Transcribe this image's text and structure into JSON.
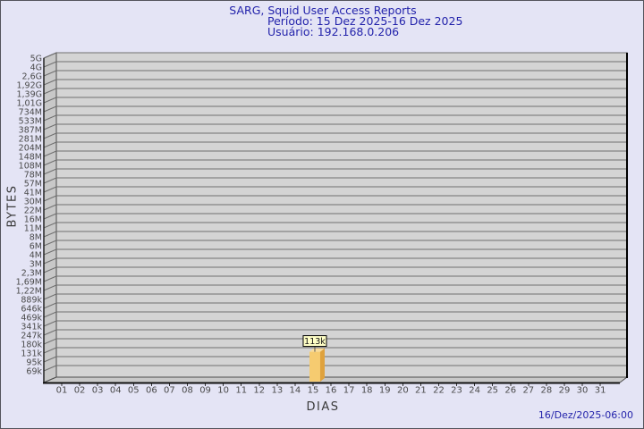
{
  "header": {
    "title": "SARG, Squid User Access Reports",
    "period": "Período: 15 Dez 2025-16 Dez 2025",
    "user": "Usuário: 192.168.0.206"
  },
  "footer": {
    "timestamp": "16/Dez/2025-06:00"
  },
  "chart_data": {
    "type": "bar",
    "title": "SARG, Squid User Access Reports",
    "subtitle": "Período: 15 Dez 2025-16 Dez 2025",
    "user_line": "Usuário: 192.168.0.206",
    "xlabel": "DIAS",
    "ylabel": "BYTES",
    "scale": "log",
    "y_min_value": 69000,
    "y_max_value": 5000000000,
    "y_ticks": [
      "5G",
      "4G",
      "2,6G",
      "1,92G",
      "1,39G",
      "1,01G",
      "734M",
      "533M",
      "387M",
      "281M",
      "204M",
      "148M",
      "108M",
      "78M",
      "57M",
      "41M",
      "30M",
      "22M",
      "16M",
      "11M",
      "8M",
      "6M",
      "4M",
      "3M",
      "2,3M",
      "1,69M",
      "1,22M",
      "889k",
      "646k",
      "469k",
      "341k",
      "247k",
      "180k",
      "131k",
      "95k",
      "69k"
    ],
    "x_ticks": [
      "01",
      "02",
      "03",
      "04",
      "05",
      "06",
      "07",
      "08",
      "09",
      "10",
      "11",
      "12",
      "13",
      "14",
      "15",
      "16",
      "17",
      "18",
      "19",
      "20",
      "21",
      "22",
      "23",
      "24",
      "25",
      "26",
      "27",
      "28",
      "29",
      "30",
      "31"
    ],
    "bars": [
      {
        "day": "15",
        "label": "113k",
        "value_bytes": 113000
      }
    ],
    "legend": null,
    "grid": true,
    "colors": {
      "background": "#e4e4f5",
      "title_text": "#2323ab",
      "panel": "#d4d4d4",
      "wall": "#c8c8c8",
      "grid": "#6f6f6f",
      "edge": "#4d4d4d",
      "tick_text": "#4a4a4a",
      "bar_front": "#f6cb70",
      "bar_side": "#dfa23d",
      "bar_top": "#fadc9a",
      "bar_label_bg": "#ffffc6",
      "bar_label_text": "#111111"
    }
  }
}
